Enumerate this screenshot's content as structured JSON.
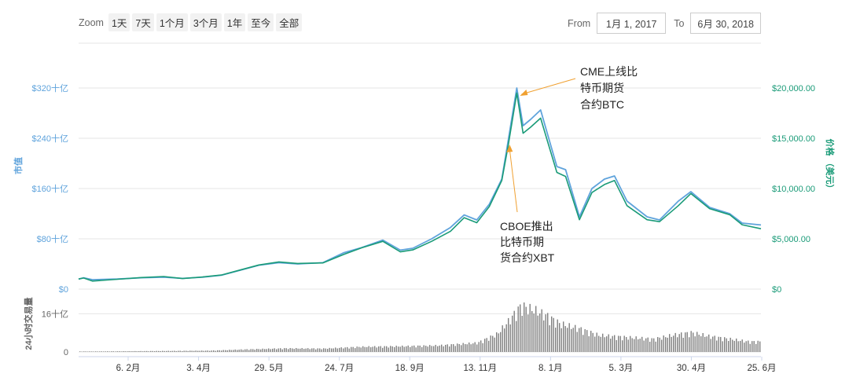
{
  "toolbar": {
    "zoom_label": "Zoom",
    "buttons": [
      "1天",
      "7天",
      "1个月",
      "3个月",
      "1年",
      "至今",
      "全部"
    ],
    "from_label": "From",
    "from_value": "1月 1, 2017",
    "to_label": "To",
    "to_value": "6月 30, 2018"
  },
  "colors": {
    "market_cap": "#5fa3dc",
    "price": "#1a9b78",
    "volume": "#7f7f7f",
    "annotation_arrow": "#f0a030",
    "grid": "#e6e6e6"
  },
  "chart_data": {
    "type": "line",
    "x_ticks": [
      "6. 2月",
      "3. 4月",
      "29. 5月",
      "24. 7月",
      "18. 9月",
      "13. 11月",
      "8. 1月",
      "5. 3月",
      "30. 4月",
      "25. 6月"
    ],
    "x_range": [
      "2017-01-01",
      "2018-06-30"
    ],
    "left_axis": {
      "title": "市值",
      "ticks": [
        "$0",
        "$80十亿",
        "$160十亿",
        "$240十亿",
        "$320十亿"
      ],
      "range_billion_usd": [
        0,
        360
      ]
    },
    "right_axis": {
      "title": "价格 （美元）",
      "ticks": [
        "$0",
        "$5,000.00",
        "$10,000.00",
        "$15,000.00",
        "$20,000.00"
      ],
      "range_usd": [
        0,
        22500
      ]
    },
    "volume_axis": {
      "title": "24小时交易量",
      "ticks": [
        "0",
        "16十亿"
      ],
      "range_billion_usd": [
        0,
        25
      ]
    },
    "series": [
      {
        "name": "市值",
        "axis": "left",
        "x": [
          "2017-01-01",
          "2017-01-05",
          "2017-01-12",
          "2017-02-01",
          "2017-02-20",
          "2017-03-10",
          "2017-03-25",
          "2017-04-10",
          "2017-04-25",
          "2017-05-10",
          "2017-05-25",
          "2017-06-10",
          "2017-06-25",
          "2017-07-15",
          "2017-08-01",
          "2017-08-15",
          "2017-09-01",
          "2017-09-15",
          "2017-09-25",
          "2017-10-10",
          "2017-10-25",
          "2017-11-05",
          "2017-11-15",
          "2017-11-25",
          "2017-12-05",
          "2017-12-10",
          "2017-12-17",
          "2017-12-22",
          "2017-12-28",
          "2018-01-05",
          "2018-01-10",
          "2018-01-18",
          "2018-01-25",
          "2018-02-05",
          "2018-02-15",
          "2018-02-25",
          "2018-03-05",
          "2018-03-15",
          "2018-03-31",
          "2018-04-10",
          "2018-04-25",
          "2018-05-05",
          "2018-05-20",
          "2018-06-05",
          "2018-06-15",
          "2018-06-30"
        ],
        "values": [
          16,
          18,
          15,
          16,
          18,
          19,
          17,
          19,
          22,
          30,
          38,
          42,
          40,
          42,
          58,
          66,
          78,
          62,
          65,
          80,
          98,
          118,
          110,
          135,
          175,
          235,
          320,
          260,
          270,
          285,
          250,
          195,
          190,
          115,
          160,
          175,
          180,
          140,
          115,
          110,
          140,
          155,
          130,
          120,
          105,
          102
        ]
      },
      {
        "name": "价格 （美元）",
        "axis": "right",
        "x": [
          "2017-01-01",
          "2017-01-05",
          "2017-01-12",
          "2017-02-01",
          "2017-02-20",
          "2017-03-10",
          "2017-03-25",
          "2017-04-10",
          "2017-04-25",
          "2017-05-10",
          "2017-05-25",
          "2017-06-10",
          "2017-06-25",
          "2017-07-15",
          "2017-08-01",
          "2017-08-15",
          "2017-09-01",
          "2017-09-15",
          "2017-09-25",
          "2017-10-10",
          "2017-10-25",
          "2017-11-05",
          "2017-11-15",
          "2017-11-25",
          "2017-12-05",
          "2017-12-10",
          "2017-12-17",
          "2017-12-22",
          "2017-12-28",
          "2018-01-05",
          "2018-01-10",
          "2018-01-18",
          "2018-01-25",
          "2018-02-05",
          "2018-02-15",
          "2018-02-25",
          "2018-03-05",
          "2018-03-15",
          "2018-03-31",
          "2018-04-10",
          "2018-04-25",
          "2018-05-05",
          "2018-05-20",
          "2018-06-05",
          "2018-06-15",
          "2018-06-30"
        ],
        "values": [
          1000,
          1100,
          800,
          980,
          1150,
          1250,
          1050,
          1200,
          1400,
          1900,
          2400,
          2700,
          2550,
          2600,
          3450,
          4100,
          4750,
          3700,
          3900,
          4750,
          5750,
          7100,
          6600,
          8200,
          10800,
          14200,
          19500,
          15500,
          16100,
          17000,
          14900,
          11600,
          11200,
          6900,
          9600,
          10400,
          10800,
          8300,
          6900,
          6700,
          8300,
          9500,
          8000,
          7400,
          6400,
          6000
        ]
      },
      {
        "name": "24小时交易量",
        "axis": "volume",
        "x": [
          "2017-01-15",
          "2017-02-15",
          "2017-03-15",
          "2017-04-15",
          "2017-05-15",
          "2017-06-15",
          "2017-07-15",
          "2017-08-15",
          "2017-09-15",
          "2017-10-15",
          "2017-11-15",
          "2017-12-01",
          "2017-12-10",
          "2017-12-20",
          "2018-01-01",
          "2018-01-10",
          "2018-01-20",
          "2018-02-05",
          "2018-02-20",
          "2018-03-05",
          "2018-03-20",
          "2018-04-05",
          "2018-04-20",
          "2018-05-05",
          "2018-05-20",
          "2018-06-05",
          "2018-06-20"
        ],
        "values": [
          0.2,
          0.3,
          0.4,
          0.5,
          1.0,
          1.4,
          1.3,
          2.0,
          2.2,
          2.5,
          3.5,
          7.0,
          12.0,
          18.0,
          16.0,
          14.0,
          11.0,
          9.0,
          6.5,
          6.0,
          5.5,
          5.0,
          6.5,
          7.5,
          6.0,
          5.0,
          4.0
        ]
      }
    ],
    "annotations": [
      {
        "text": "CME上线比特币期货合约BTC",
        "lines": [
          "CME上线比",
          "特币期货",
          "合约BTC"
        ],
        "x": "2017-12-17"
      },
      {
        "text": "CBOE推出比特币期货合约XBT",
        "lines": [
          "CBOE推出",
          "比特币期",
          "货合约XBT"
        ],
        "x": "2017-12-10"
      }
    ],
    "grid": true
  }
}
